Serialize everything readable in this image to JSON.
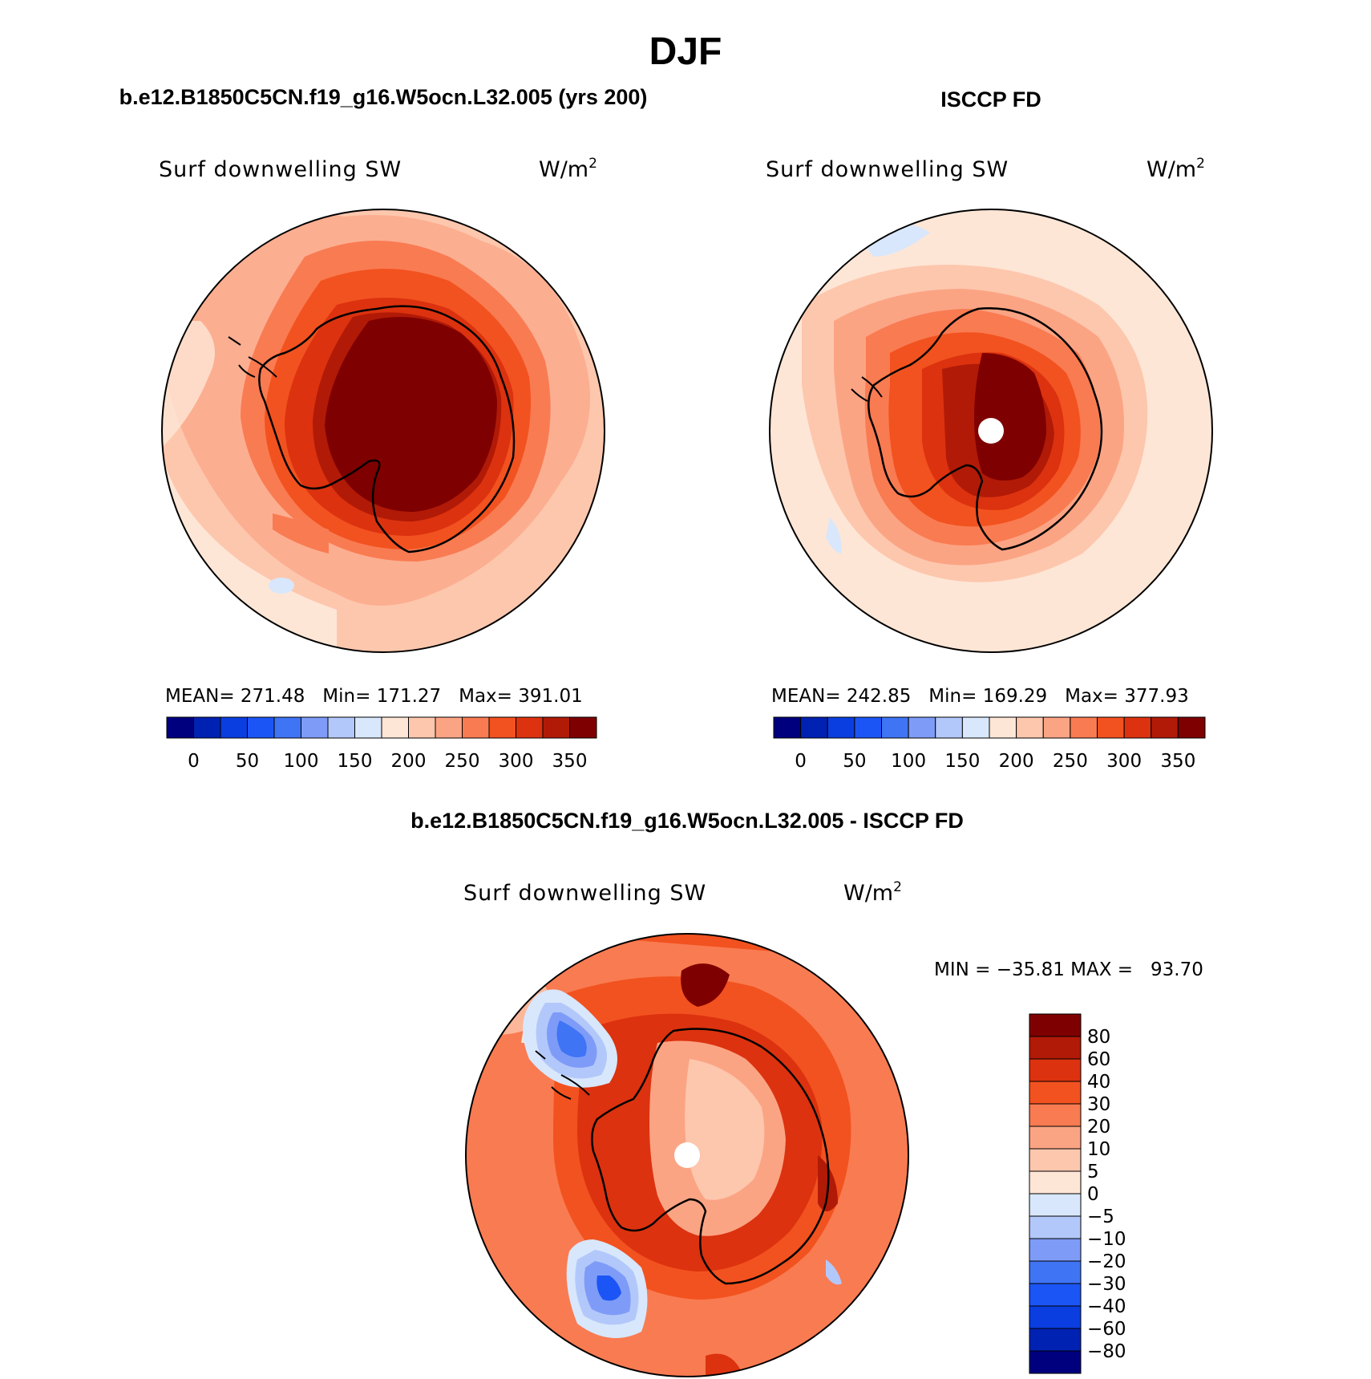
{
  "header": {
    "title": "DJF",
    "left_case_title": "b.e12.B1850C5CN.f19_g16.W5ocn.L32.005 (yrs 200)",
    "right_case_title": "ISCCP FD",
    "diff_title": "b.e12.B1850C5CN.f19_g16.W5ocn.L32.005 - ISCCP FD"
  },
  "panels": {
    "model": {
      "variable": "Surf downwelling SW",
      "units": "W/m",
      "units_exp": "2",
      "stats": "MEAN= 271.48   Min= 171.27   Max= 391.01"
    },
    "obs": {
      "variable": "Surf downwelling SW",
      "units": "W/m",
      "units_exp": "2",
      "stats": "MEAN= 242.85   Min= 169.29   Max= 377.93"
    },
    "diff": {
      "variable": "Surf downwelling SW",
      "units": "W/m",
      "units_exp": "2",
      "stats": "MIN = −35.81 MAX =   93.70"
    }
  },
  "colorbars": {
    "abs": {
      "colors": [
        "#00007f",
        "#0022b3",
        "#0a3ee0",
        "#1c55f5",
        "#3f74f5",
        "#7e9cf7",
        "#b3c8fa",
        "#d8e7fb",
        "#fee6d6",
        "#fdc7ad",
        "#fba484",
        "#f97b52",
        "#f2521f",
        "#dc320f",
        "#b11a07",
        "#7f0000"
      ],
      "labels": [
        "0",
        "50",
        "100",
        "150",
        "200",
        "250",
        "300",
        "350"
      ]
    },
    "diff": {
      "colors": [
        "#00007f",
        "#0022b3",
        "#0a3ee0",
        "#1c55f5",
        "#3f74f5",
        "#7e9cf7",
        "#b3c8fa",
        "#d8e7fb",
        "#fee6d6",
        "#fdc7ad",
        "#fba484",
        "#f97b52",
        "#f2521f",
        "#dc320f",
        "#b11a07",
        "#7f0000"
      ],
      "labels": [
        "80",
        "60",
        "40",
        "30",
        "20",
        "10",
        "5",
        "0",
        "−5",
        "−10",
        "−20",
        "−30",
        "−40",
        "−60",
        "−80"
      ]
    }
  }
}
